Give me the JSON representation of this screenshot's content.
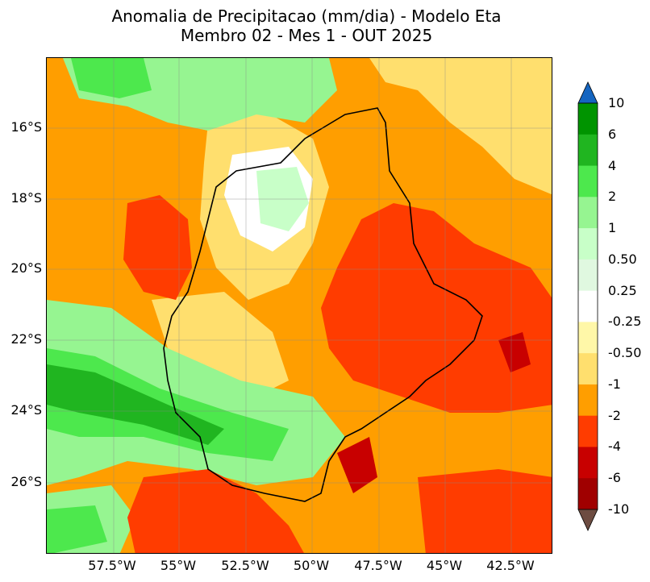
{
  "title": {
    "line1": "Anomalia de Precipitacao (mm/dia) - Modelo Eta",
    "line2": "Membro 02 - Mes 1 - OUT 2025"
  },
  "map": {
    "lat_labels": [
      "16°S",
      "18°S",
      "20°S",
      "22°S",
      "24°S",
      "26°S"
    ],
    "lon_labels": [
      "57.5°W",
      "55°W",
      "52.5°W",
      "50°W",
      "47.5°W",
      "45°W",
      "42.5°W"
    ]
  },
  "colorbar": {
    "labels": [
      "10",
      "6",
      "4",
      "2",
      "1",
      "0.50",
      "0.25",
      "-0.25",
      "-0.50",
      "-1",
      "-2",
      "-4",
      "-6",
      "-10"
    ],
    "levels": [
      {
        "range": "6 a 10",
        "color": "#009400"
      },
      {
        "range": "4 a 6",
        "color": "#20b520"
      },
      {
        "range": "2 a 4",
        "color": "#4de84d"
      },
      {
        "range": "1 a 2",
        "color": "#96f591"
      },
      {
        "range": "0.50 a 1",
        "color": "#c8ffc8"
      },
      {
        "range": "0.25 a 0.50",
        "color": "#e0f8e0"
      },
      {
        "range": "-0.25 a 0.25",
        "color": "#ffffff"
      },
      {
        "range": "-0.50 a -0.25",
        "color": "#fff7a8"
      },
      {
        "range": "-1 a -0.50",
        "color": "#ffdf6e"
      },
      {
        "range": "-2 a -1",
        "color": "#ff9e00"
      },
      {
        "range": "-4 a -2",
        "color": "#ff3c00"
      },
      {
        "range": "-6 a -4",
        "color": "#c80000"
      },
      {
        "range": "-10 a -6",
        "color": "#a00000"
      }
    ],
    "over_color": "#1565c0",
    "under_color": "#6d4c41"
  }
}
